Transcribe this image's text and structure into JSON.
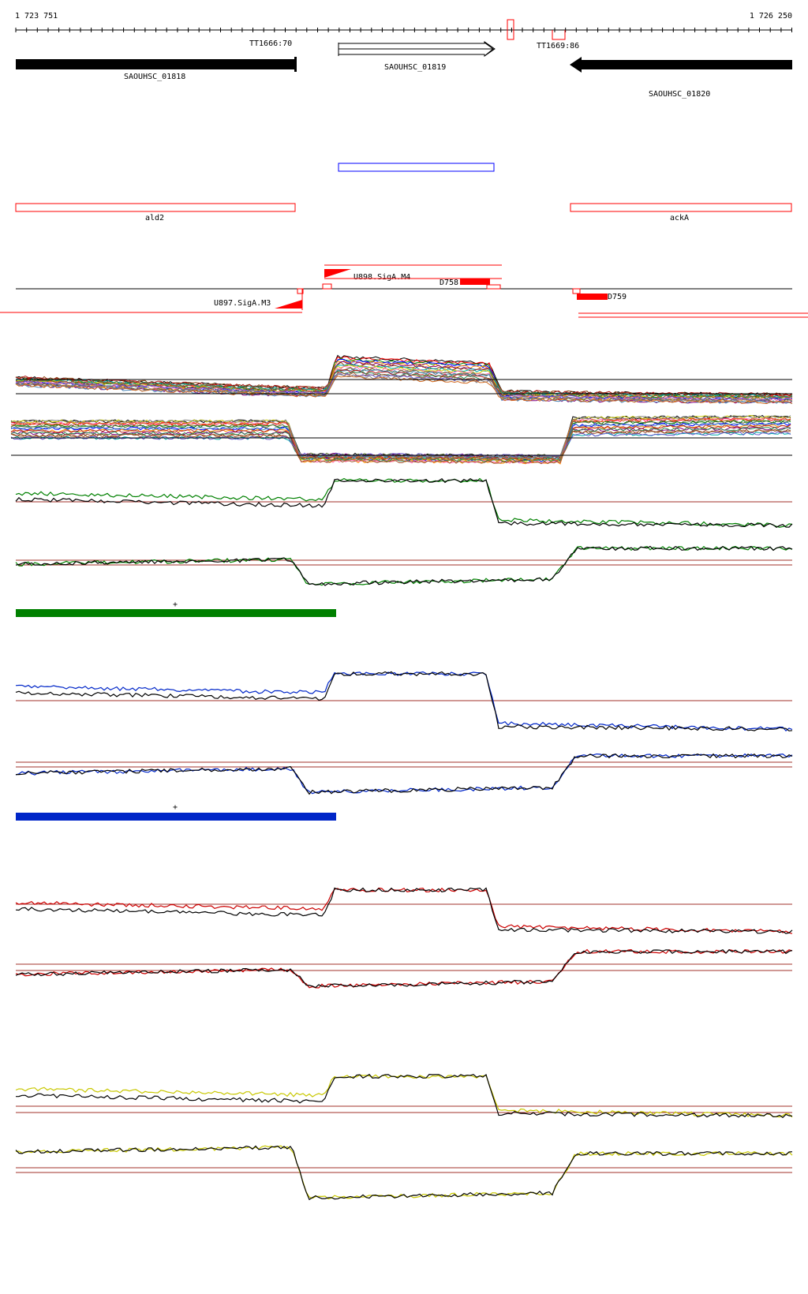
{
  "ruler": {
    "start_label": "1 723 751",
    "end_label": "1 726 250"
  },
  "terminators": [
    {
      "label": "TT1666:70"
    },
    {
      "label": "TT1669:86"
    }
  ],
  "genes": [
    {
      "id": "SAOUHSC_01818",
      "strand": "+",
      "style": "filled"
    },
    {
      "id": "SAOUHSC_01819",
      "strand": "+",
      "style": "outline"
    },
    {
      "id": "SAOUHSC_01820",
      "strand": "-",
      "style": "filled"
    }
  ],
  "annotations": [
    {
      "label": "ald2"
    },
    {
      "label": "ackA"
    }
  ],
  "regulatory_features": [
    {
      "label": "U898.SigA.M4"
    },
    {
      "label": "D758"
    },
    {
      "label": "U897.SigA.M3"
    },
    {
      "label": "D759"
    }
  ],
  "conditions": [
    {
      "color": "#008000",
      "strand_label": "+"
    },
    {
      "color": "#0026c8",
      "strand_label": "+"
    },
    {
      "color": "#cc0000"
    },
    {
      "color": "#c8c800"
    }
  ],
  "colors": {
    "gene_fill": "#000000",
    "annotation_outline": "#ff0000",
    "region_outline": "#0000ff",
    "threshold_line": "#a0302a",
    "promoter": "#ff0000"
  }
}
